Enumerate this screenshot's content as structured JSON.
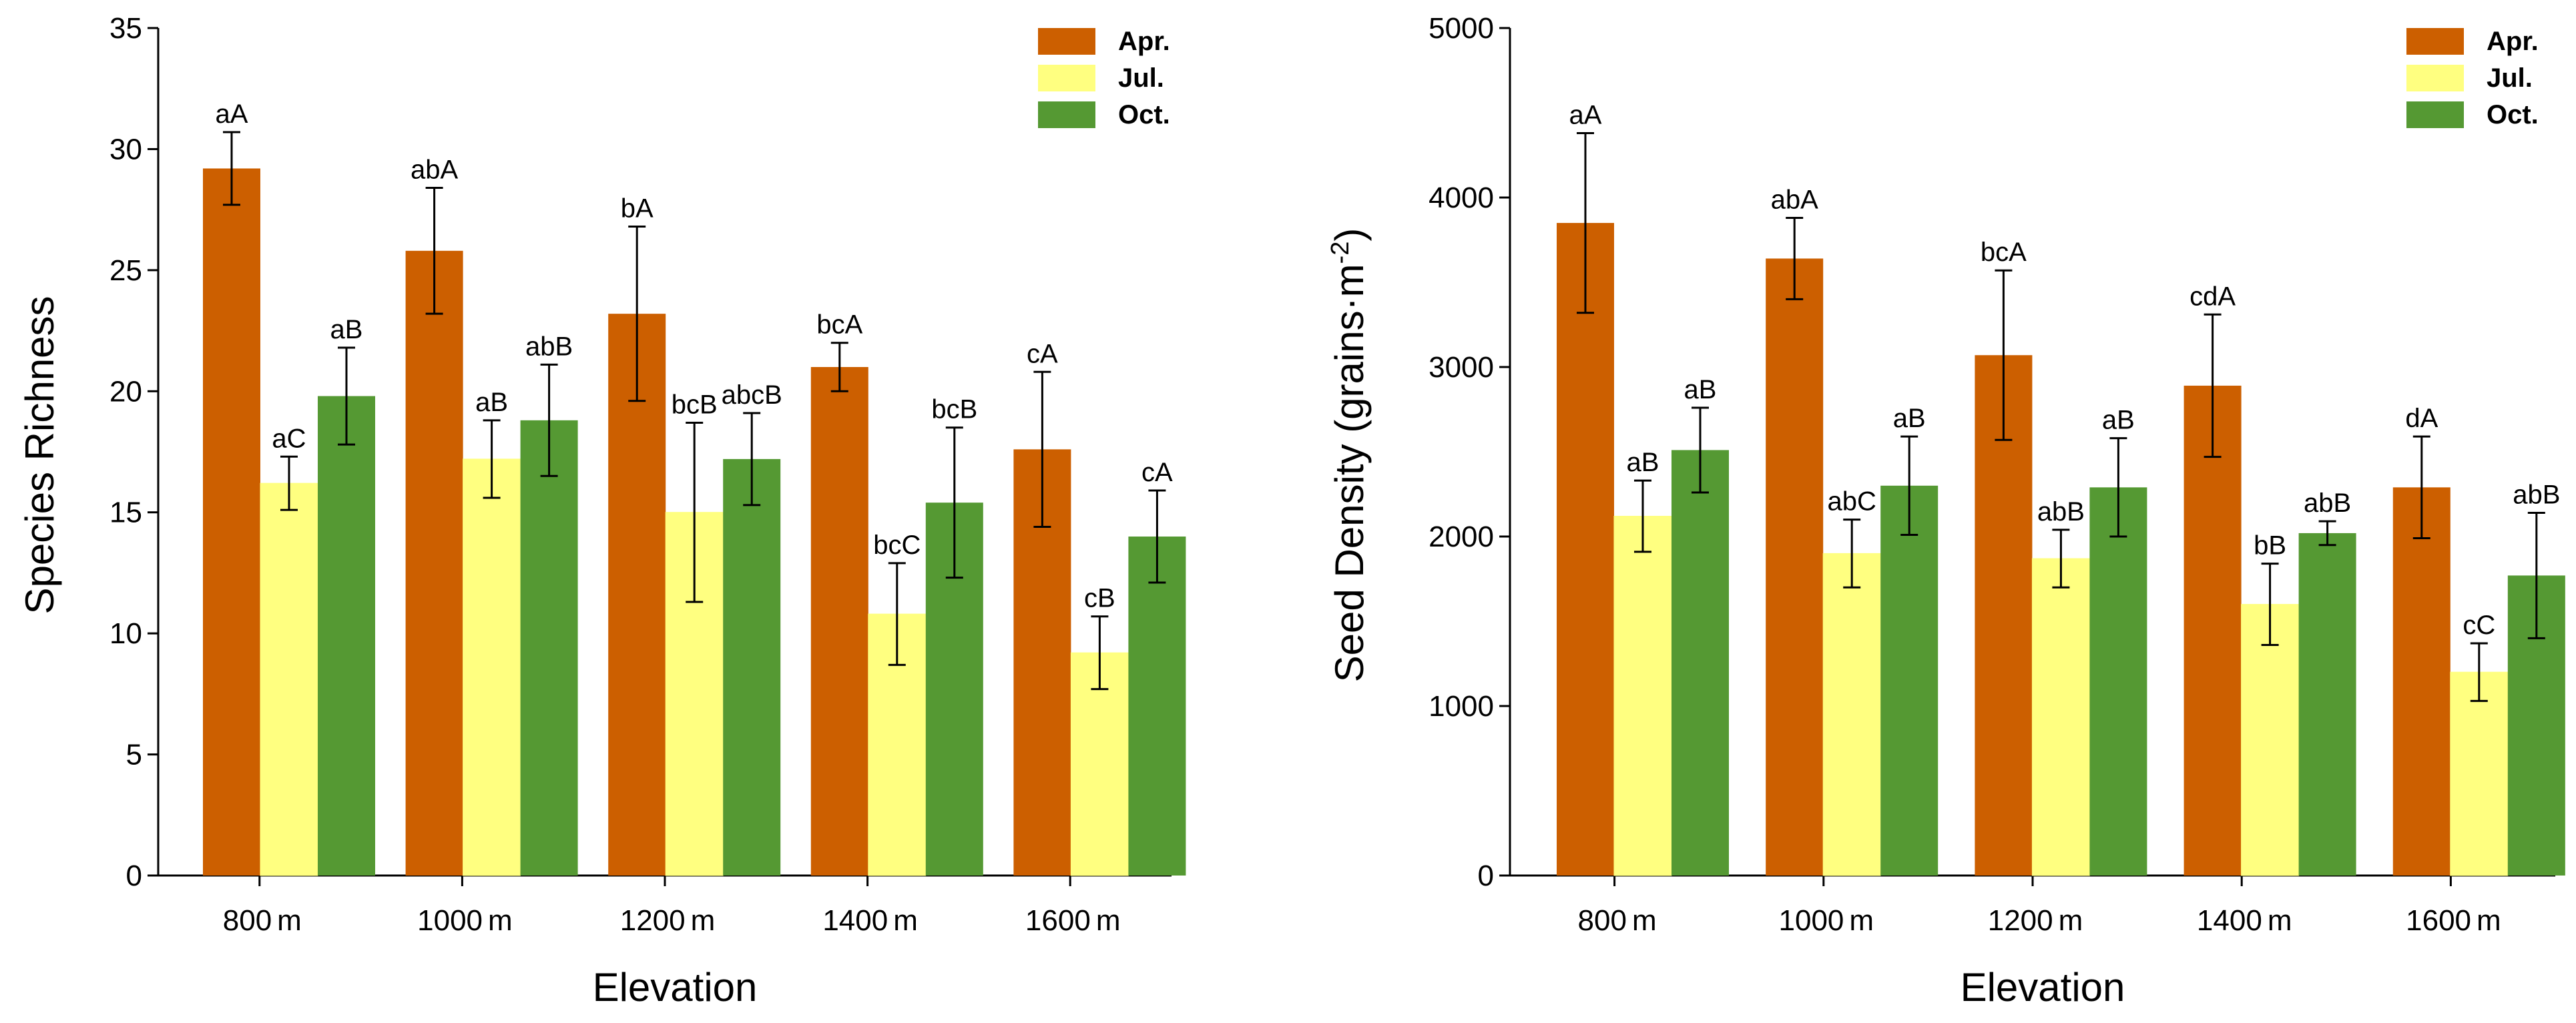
{
  "chart_data": [
    {
      "type": "bar",
      "title": "",
      "xlabel": "Elevation",
      "ylabel": "Species Richness",
      "ylabel_parts": [],
      "categories": [
        "800",
        "1000",
        "1200",
        "1400",
        "1600"
      ],
      "category_unit": "m",
      "ylim": [
        0,
        35
      ],
      "yticks": [
        "0",
        "5",
        "10",
        "15",
        "20",
        "25",
        "30",
        "35"
      ],
      "grid": false,
      "legend_position": "top-right",
      "series": [
        {
          "name": "Apr.",
          "color": "#cc5f00",
          "values": [
            29.2,
            25.8,
            23.2,
            21.0,
            17.6
          ],
          "errors": [
            1.5,
            2.6,
            3.6,
            1.0,
            3.2
          ],
          "labels": [
            "aA",
            "abA",
            "bA",
            "bcA",
            "cA"
          ]
        },
        {
          "name": "Jul.",
          "color": "#ffff80",
          "values": [
            16.2,
            17.2,
            15.0,
            10.8,
            9.2
          ],
          "errors": [
            1.1,
            1.6,
            3.7,
            2.1,
            1.5
          ],
          "labels": [
            "aC",
            "aB",
            "bcB",
            "bcC",
            "cB"
          ]
        },
        {
          "name": "Oct.",
          "color": "#559933",
          "values": [
            19.8,
            18.8,
            17.2,
            15.4,
            14.0
          ],
          "errors": [
            2.0,
            2.3,
            1.9,
            3.1,
            1.9
          ],
          "labels": [
            "aB",
            "abB",
            "abcB",
            "bcB",
            "cA"
          ]
        }
      ]
    },
    {
      "type": "bar",
      "title": "",
      "xlabel": "Elevation",
      "ylabel": "Seed Density (grains·m",
      "ylabel_parts": [
        "-2",
        ")"
      ],
      "categories": [
        "800",
        "1000",
        "1200",
        "1400",
        "1600"
      ],
      "category_unit": "m",
      "ylim": [
        0,
        5000
      ],
      "yticks": [
        "0",
        "1000",
        "2000",
        "3000",
        "4000",
        "5000"
      ],
      "grid": false,
      "legend_position": "top-right",
      "series": [
        {
          "name": "Apr.",
          "color": "#cc5f00",
          "values": [
            3850,
            3640,
            3070,
            2890,
            2290
          ],
          "errors": [
            530,
            240,
            500,
            420,
            300
          ],
          "labels": [
            "aA",
            "abA",
            "bcA",
            "cdA",
            "dA"
          ]
        },
        {
          "name": "Jul.",
          "color": "#ffff80",
          "values": [
            2120,
            1900,
            1870,
            1600,
            1200
          ],
          "errors": [
            210,
            200,
            170,
            240,
            170
          ],
          "labels": [
            "aB",
            "abC",
            "abB",
            "bB",
            "cC"
          ]
        },
        {
          "name": "Oct.",
          "color": "#559933",
          "values": [
            2510,
            2300,
            2290,
            2020,
            1770
          ],
          "errors": [
            250,
            290,
            290,
            70,
            370
          ],
          "labels": [
            "aB",
            "aB",
            "aB",
            "abB",
            "abB"
          ]
        }
      ]
    }
  ]
}
